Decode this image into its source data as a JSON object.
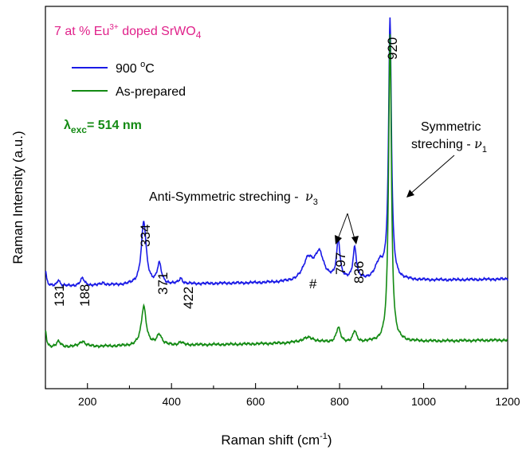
{
  "chart_data": {
    "type": "line",
    "title": "7 at % Eu",
    "title_sup": "3+",
    "title_rest": " doped SrWO",
    "title_sub": "4",
    "title_color": "#e0218a",
    "xlabel": "Raman shift (cm",
    "xlabel_sup": "-1",
    "xlabel_tail": ")",
    "ylabel": "Raman Intensity (a.u.)",
    "xlim": [
      100,
      1200
    ],
    "y_ticks_labeled": false,
    "x_ticks": [
      "200",
      "400",
      "600",
      "800",
      "1000",
      "1200"
    ],
    "grid": false,
    "legend_position": "top-left",
    "excitation": {
      "symbol": "λ",
      "subscript": "exc",
      "value": "= 514 nm",
      "color": "#138a13"
    },
    "series": [
      {
        "name": "900 °C",
        "legend_main": "900 ",
        "legend_sup": "o",
        "legend_tail": "C",
        "color": "#1a1ae6",
        "baseline": 0.34,
        "peaks": [
          {
            "x": 100,
            "h": 0.09,
            "w": 3
          },
          {
            "x": 131,
            "h": 0.035,
            "w": 4
          },
          {
            "x": 188,
            "h": 0.04,
            "w": 6
          },
          {
            "x": 237,
            "h": 0.012,
            "w": 6
          },
          {
            "x": 334,
            "h": 0.35,
            "w": 7
          },
          {
            "x": 371,
            "h": 0.11,
            "w": 6
          },
          {
            "x": 422,
            "h": 0.03,
            "w": 5
          },
          {
            "x": 725,
            "h": 0.12,
            "w": 14
          },
          {
            "x": 752,
            "h": 0.15,
            "w": 13
          },
          {
            "x": 797,
            "h": 0.22,
            "w": 5
          },
          {
            "x": 836,
            "h": 0.18,
            "w": 5
          },
          {
            "x": 895,
            "h": 0.09,
            "w": 13
          },
          {
            "x": 920,
            "h": 1.45,
            "w": 4
          }
        ]
      },
      {
        "name": "As-prepared",
        "legend_main": "As-prepared",
        "legend_sup": "",
        "legend_tail": "",
        "color": "#138a13",
        "baseline": 0.0,
        "peaks": [
          {
            "x": 100,
            "h": 0.09,
            "w": 3
          },
          {
            "x": 131,
            "h": 0.03,
            "w": 6
          },
          {
            "x": 188,
            "h": 0.03,
            "w": 8
          },
          {
            "x": 334,
            "h": 0.22,
            "w": 7
          },
          {
            "x": 371,
            "h": 0.06,
            "w": 7
          },
          {
            "x": 422,
            "h": 0.015,
            "w": 6
          },
          {
            "x": 725,
            "h": 0.03,
            "w": 20
          },
          {
            "x": 797,
            "h": 0.08,
            "w": 6
          },
          {
            "x": 836,
            "h": 0.06,
            "w": 5
          },
          {
            "x": 920,
            "h": 1.72,
            "w": 4
          }
        ]
      }
    ],
    "peak_labels": [
      "131",
      "188",
      "334",
      "371",
      "422",
      "#",
      "797",
      "836",
      "920"
    ],
    "annotations": {
      "symmetric_line1": "Symmetric",
      "symmetric_line2": "streching - ",
      "symmetric_nu": "ν",
      "symmetric_sub": "1",
      "antisym_text": "Anti-Symmetric streching - ",
      "antisym_nu": "ν",
      "antisym_sub": "3"
    }
  }
}
